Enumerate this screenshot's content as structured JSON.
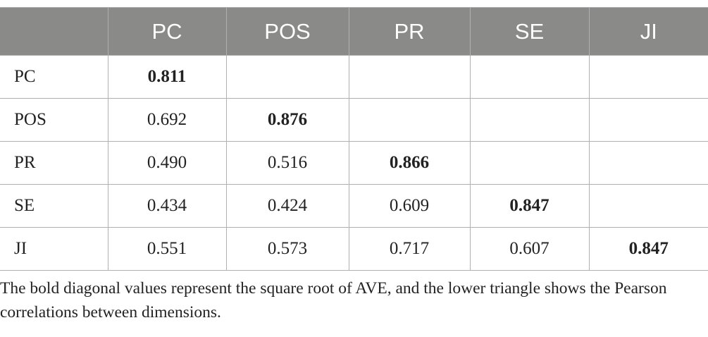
{
  "table": {
    "header": [
      "PC",
      "POS",
      "PR",
      "SE",
      "JI"
    ],
    "rows": [
      {
        "label": "PC",
        "values": [
          "0.811",
          null,
          null,
          null,
          null
        ]
      },
      {
        "label": "POS",
        "values": [
          "0.692",
          "0.876",
          null,
          null,
          null
        ]
      },
      {
        "label": "PR",
        "values": [
          "0.490",
          "0.516",
          "0.866",
          null,
          null
        ]
      },
      {
        "label": "SE",
        "values": [
          "0.434",
          "0.424",
          "0.609",
          "0.847",
          null
        ]
      },
      {
        "label": "JI",
        "values": [
          "0.551",
          "0.573",
          "0.717",
          "0.607",
          "0.847"
        ]
      }
    ]
  },
  "footnote": "The bold diagonal values represent the square root of AVE, and the lower triangle shows the Pearson correlations between dimensions."
}
